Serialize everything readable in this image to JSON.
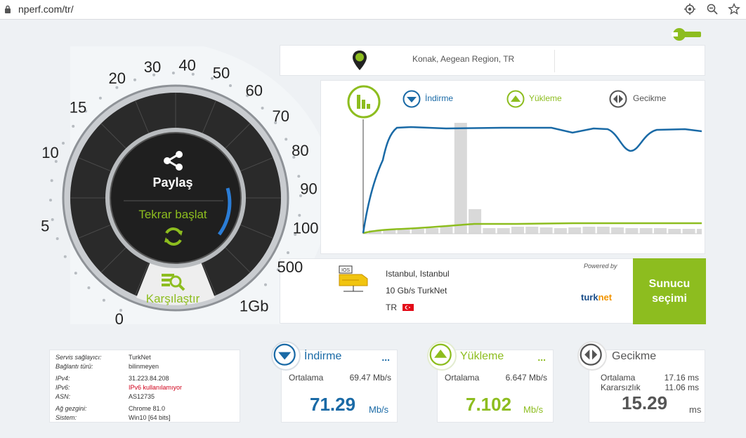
{
  "browser": {
    "url": "nperf.com/tr/"
  },
  "location": {
    "text": "Konak, Aegean Region, TR"
  },
  "gauge": {
    "ticks": [
      "0",
      "5",
      "10",
      "15",
      "20",
      "30",
      "40",
      "50",
      "60",
      "70",
      "80",
      "90",
      "100",
      "500",
      "1Gb"
    ],
    "share_label": "Paylaş",
    "restart_label": "Tekrar başlat",
    "compare_label": "Karşılaştır"
  },
  "chart_legend": {
    "download": "İndirme",
    "upload": "Yükleme",
    "latency": "Gecikme"
  },
  "server": {
    "city": "Istanbul, Istanbul",
    "provider": "10 Gb/s TurkNet",
    "country": "TR",
    "powered_by": "Powered by",
    "brand_part1": "turk",
    "brand_part2": "net",
    "select_button": "Sunucu seçimi"
  },
  "info": {
    "rows": [
      {
        "k": "Servis sağlayıcı:",
        "v": "TurkNet"
      },
      {
        "k": "Bağlantı türü:",
        "v": "bilinmeyen"
      },
      {
        "k": "IPv4:",
        "v": "31.223.84.208"
      },
      {
        "k": "IPv6:",
        "v": "IPv6 kullanılamıyor"
      },
      {
        "k": "ASN:",
        "v": "AS12735"
      },
      {
        "k": "Ağ gezgini:",
        "v": "Chrome 81.0"
      },
      {
        "k": "Sistem:",
        "v": "Win10 [64 bits]"
      }
    ]
  },
  "results": {
    "download": {
      "title": "İndirme",
      "avg_label": "Ortalama",
      "avg_value": "69.47 Mb/s",
      "value": "71.29",
      "unit": "Mb/s",
      "more": "..."
    },
    "upload": {
      "title": "Yükleme",
      "avg_label": "Ortalama",
      "avg_value": "6.647 Mb/s",
      "value": "7.102",
      "unit": "Mb/s",
      "more": "..."
    },
    "latency": {
      "title": "Gecikme",
      "avg_label": "Ortalama",
      "avg_value": "17.16 ms",
      "jitter_label": "Kararsızlık",
      "jitter_value": "11.06 ms",
      "value": "15.29",
      "unit": "ms"
    }
  },
  "colors": {
    "download": "#1a6aa6",
    "upload": "#8dbd1f",
    "latency": "#555555"
  }
}
